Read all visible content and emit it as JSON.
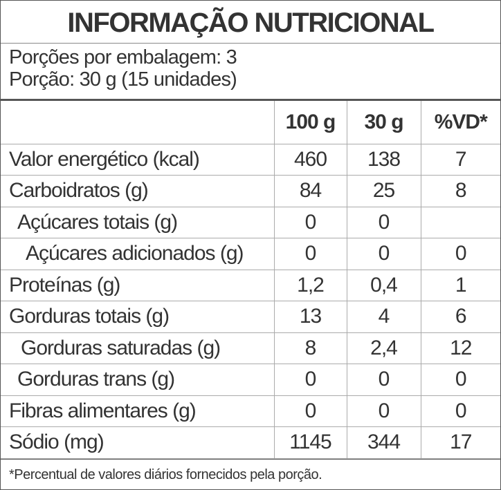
{
  "header": {
    "title": "INFORMAÇÃO NUTRICIONAL"
  },
  "servings": [
    "Porções por embalagem: 3",
    "Porção: 30 g (15 unidades)"
  ],
  "table": {
    "columns": [
      "100 g",
      "30 g",
      "%VD*"
    ],
    "rows": [
      {
        "label": "Valor energético (kcal)",
        "values": [
          "460",
          "138",
          "7"
        ]
      },
      {
        "label": "Carboidratos (g)",
        "values": [
          "84",
          "25",
          "8"
        ]
      },
      {
        "label": "Açúcares totais (g)",
        "values": [
          "0",
          "0",
          null
        ]
      },
      {
        "label": "Açúcares adicionados (g)",
        "values": [
          "0",
          "0",
          "0"
        ]
      },
      {
        "label": "Proteínas (g)",
        "values": [
          "1,2",
          "0,4",
          "1"
        ]
      },
      {
        "label": "Gorduras totais (g)",
        "values": [
          "13",
          "4",
          "6"
        ]
      },
      {
        "label": "Gorduras saturadas (g)",
        "values": [
          "8",
          "2,4",
          "12"
        ]
      },
      {
        "label": "Gorduras trans (g)",
        "values": [
          "0",
          "0",
          "0"
        ]
      },
      {
        "label": "Fibras alimentares (g)",
        "values": [
          "0",
          "0",
          "0"
        ]
      },
      {
        "label": "Sódio (mg)",
        "values": [
          "1145",
          "344",
          "17"
        ]
      }
    ]
  },
  "footnote": "*Percentual de valores diários fornecidos pela porção."
}
